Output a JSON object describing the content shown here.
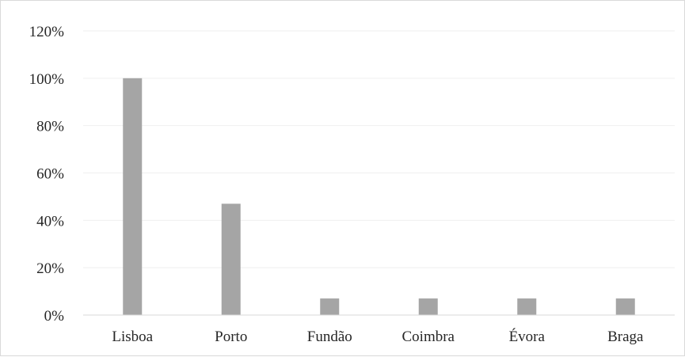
{
  "chart_data": {
    "type": "bar",
    "categories": [
      "Lisboa",
      "Porto",
      "Fundão",
      "Coimbra",
      "Évora",
      "Braga"
    ],
    "values": [
      100,
      47,
      7,
      7,
      7,
      7
    ],
    "y_tick_labels": [
      "0%",
      "20%",
      "40%",
      "60%",
      "80%",
      "100%",
      "120%"
    ],
    "y_ticks": [
      0,
      20,
      40,
      60,
      80,
      100,
      120
    ],
    "ylim": [
      0,
      120
    ],
    "grid": true,
    "legend": "none",
    "colors": {
      "bar": "#a5a5a5",
      "grid": "#efefef",
      "axis": "#d9d9d9",
      "text": "#262626"
    }
  }
}
